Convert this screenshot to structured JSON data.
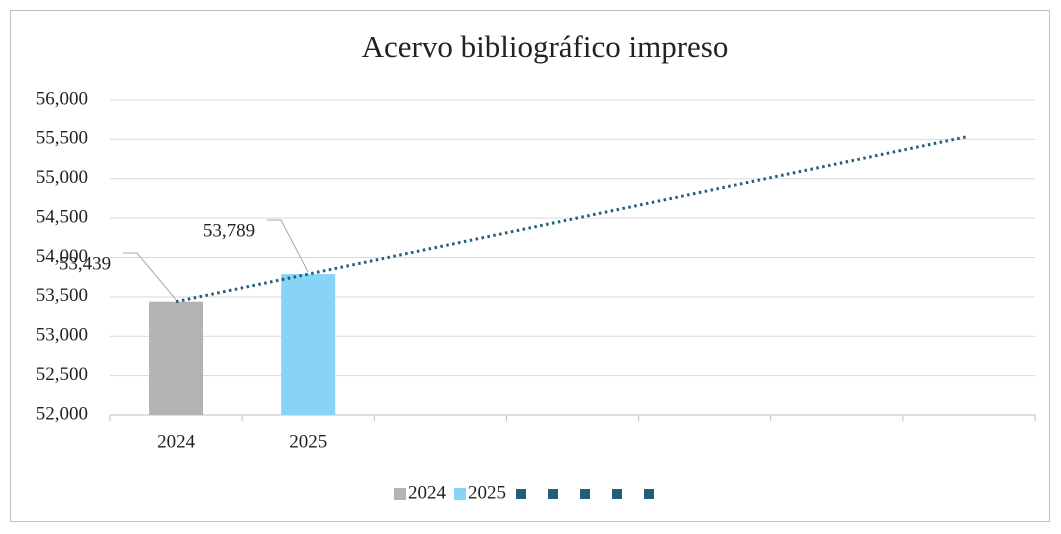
{
  "chart_data": {
    "type": "bar",
    "title": "Acervo bibliográfico impreso",
    "categories": [
      "2024",
      "2025",
      null,
      null,
      null,
      null,
      null
    ],
    "series": [
      {
        "name": "2024",
        "color": "#b3b3b3",
        "values": [
          53439,
          null,
          null,
          null,
          null,
          null,
          null
        ],
        "value_labels": [
          "53,439",
          null,
          null,
          null,
          null,
          null,
          null
        ]
      },
      {
        "name": "2025",
        "color": "#88d4f8",
        "values": [
          null,
          53789,
          null,
          null,
          null,
          null,
          null
        ],
        "value_labels": [
          null,
          "53,789",
          null,
          null,
          null,
          null,
          null
        ]
      },
      {
        "type": "line",
        "style": "dotted",
        "color": "#1f5f7a",
        "values": [
          53439,
          53789,
          54139,
          54489,
          54839,
          55189,
          55539
        ]
      }
    ],
    "ylim": [
      52000,
      56000
    ],
    "yticks": [
      {
        "value": 52000,
        "label": "52,000"
      },
      {
        "value": 52500,
        "label": "52,500"
      },
      {
        "value": 53000,
        "label": "53,000"
      },
      {
        "value": 53500,
        "label": "53,500"
      },
      {
        "value": 54000,
        "label": "54,000"
      },
      {
        "value": 54500,
        "label": "54,500"
      },
      {
        "value": 55000,
        "label": "55,000"
      },
      {
        "value": 55500,
        "label": "55,500"
      },
      {
        "value": 56000,
        "label": "56,000"
      }
    ],
    "grid": true,
    "legend": "bottom"
  }
}
